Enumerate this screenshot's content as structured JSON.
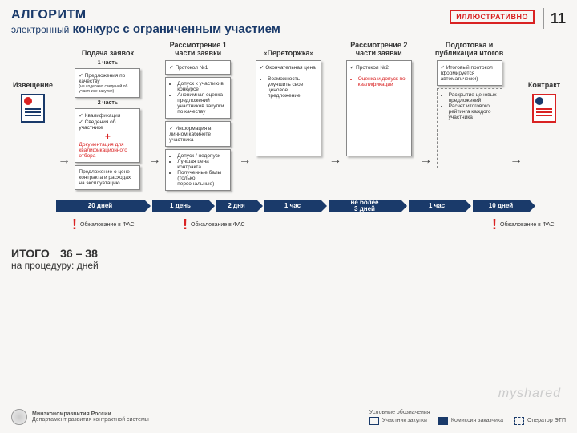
{
  "header": {
    "title": "АЛГОРИТМ",
    "subtitle_prefix": "электронный",
    "subtitle": "конкурс с ограниченным участием",
    "badge": "ИЛЛЮСТРАТИВНО",
    "page": "11"
  },
  "flow": {
    "left": {
      "label": "Извещение"
    },
    "right": {
      "label": "Контракт"
    },
    "stages": [
      {
        "title": "Подача\nзаявок",
        "part1_label": "1 часть",
        "part1_box": {
          "line1": "Предложения по качеству",
          "line2": "(не содержит сведений об участнике закупки)"
        },
        "part2_label": "2 часть",
        "part2_box": {
          "l1": "Квалификация",
          "l2": "Сведения об участнике",
          "plus": "+",
          "doc": "Документация для квалификационного отбора"
        },
        "price_box": "Предложение о цене контракта и расходах на эксплуатацию"
      },
      {
        "title": "Рассмотрение\n1 части заявки",
        "box1": {
          "l1": "Протокол №1"
        },
        "box2": {
          "b1": "Допуск к участию в конкурсе",
          "b2": "Анонимная оценка предложений участников закупки по качеству"
        },
        "box3": {
          "l1": "Информация в личном кабинете участника"
        },
        "box4": {
          "b1": "Допуск / недопуск",
          "b2": "Лучшая цена контракта",
          "b3": "Полученные балы (только персональные)"
        }
      },
      {
        "title": "«Переторжка»",
        "box": {
          "l1": "Окончательная цена",
          "b1": "Возможность улучшить свое ценовое предложение"
        }
      },
      {
        "title": "Рассмотрение\n2 части заявки",
        "box": {
          "l1": "Протокол №2",
          "b1": "Оценка и допуск по квалификации"
        }
      },
      {
        "title": "Подготовка\nи публикация итогов",
        "box1": {
          "l1": "Итоговый протокол (формируется автоматически)"
        },
        "box2": {
          "b1": "Раскрытие ценовых предложений",
          "b2": "Расчет итогового рейтинга каждого участника"
        }
      }
    ]
  },
  "timeline": {
    "segments": [
      "20 дней",
      "1 день",
      "2 дня",
      "1 час",
      "не более\n3 дней",
      "1 час",
      "10 дней"
    ],
    "widths": [
      110,
      70,
      50,
      70,
      90,
      70,
      70
    ]
  },
  "appeals": {
    "text": "Обжалование в ФАС",
    "positions": [
      76,
      214,
      600
    ]
  },
  "total": {
    "label": "ИТОГО",
    "sub": "на процедуру:",
    "value": "36 – 38",
    "unit": "дней"
  },
  "footer": {
    "org1": "Минэкономразвития России",
    "org2": "Департамент развития контрактной системы",
    "legend_title": "Условные обозначения",
    "legend": [
      "Участник закупки",
      "Комиссия заказчика",
      "Оператор ЭТП"
    ]
  },
  "watermark": "myshared",
  "colors": {
    "primary": "#1a3a6a",
    "accent": "#d92222",
    "bg": "#f7f6f4"
  }
}
